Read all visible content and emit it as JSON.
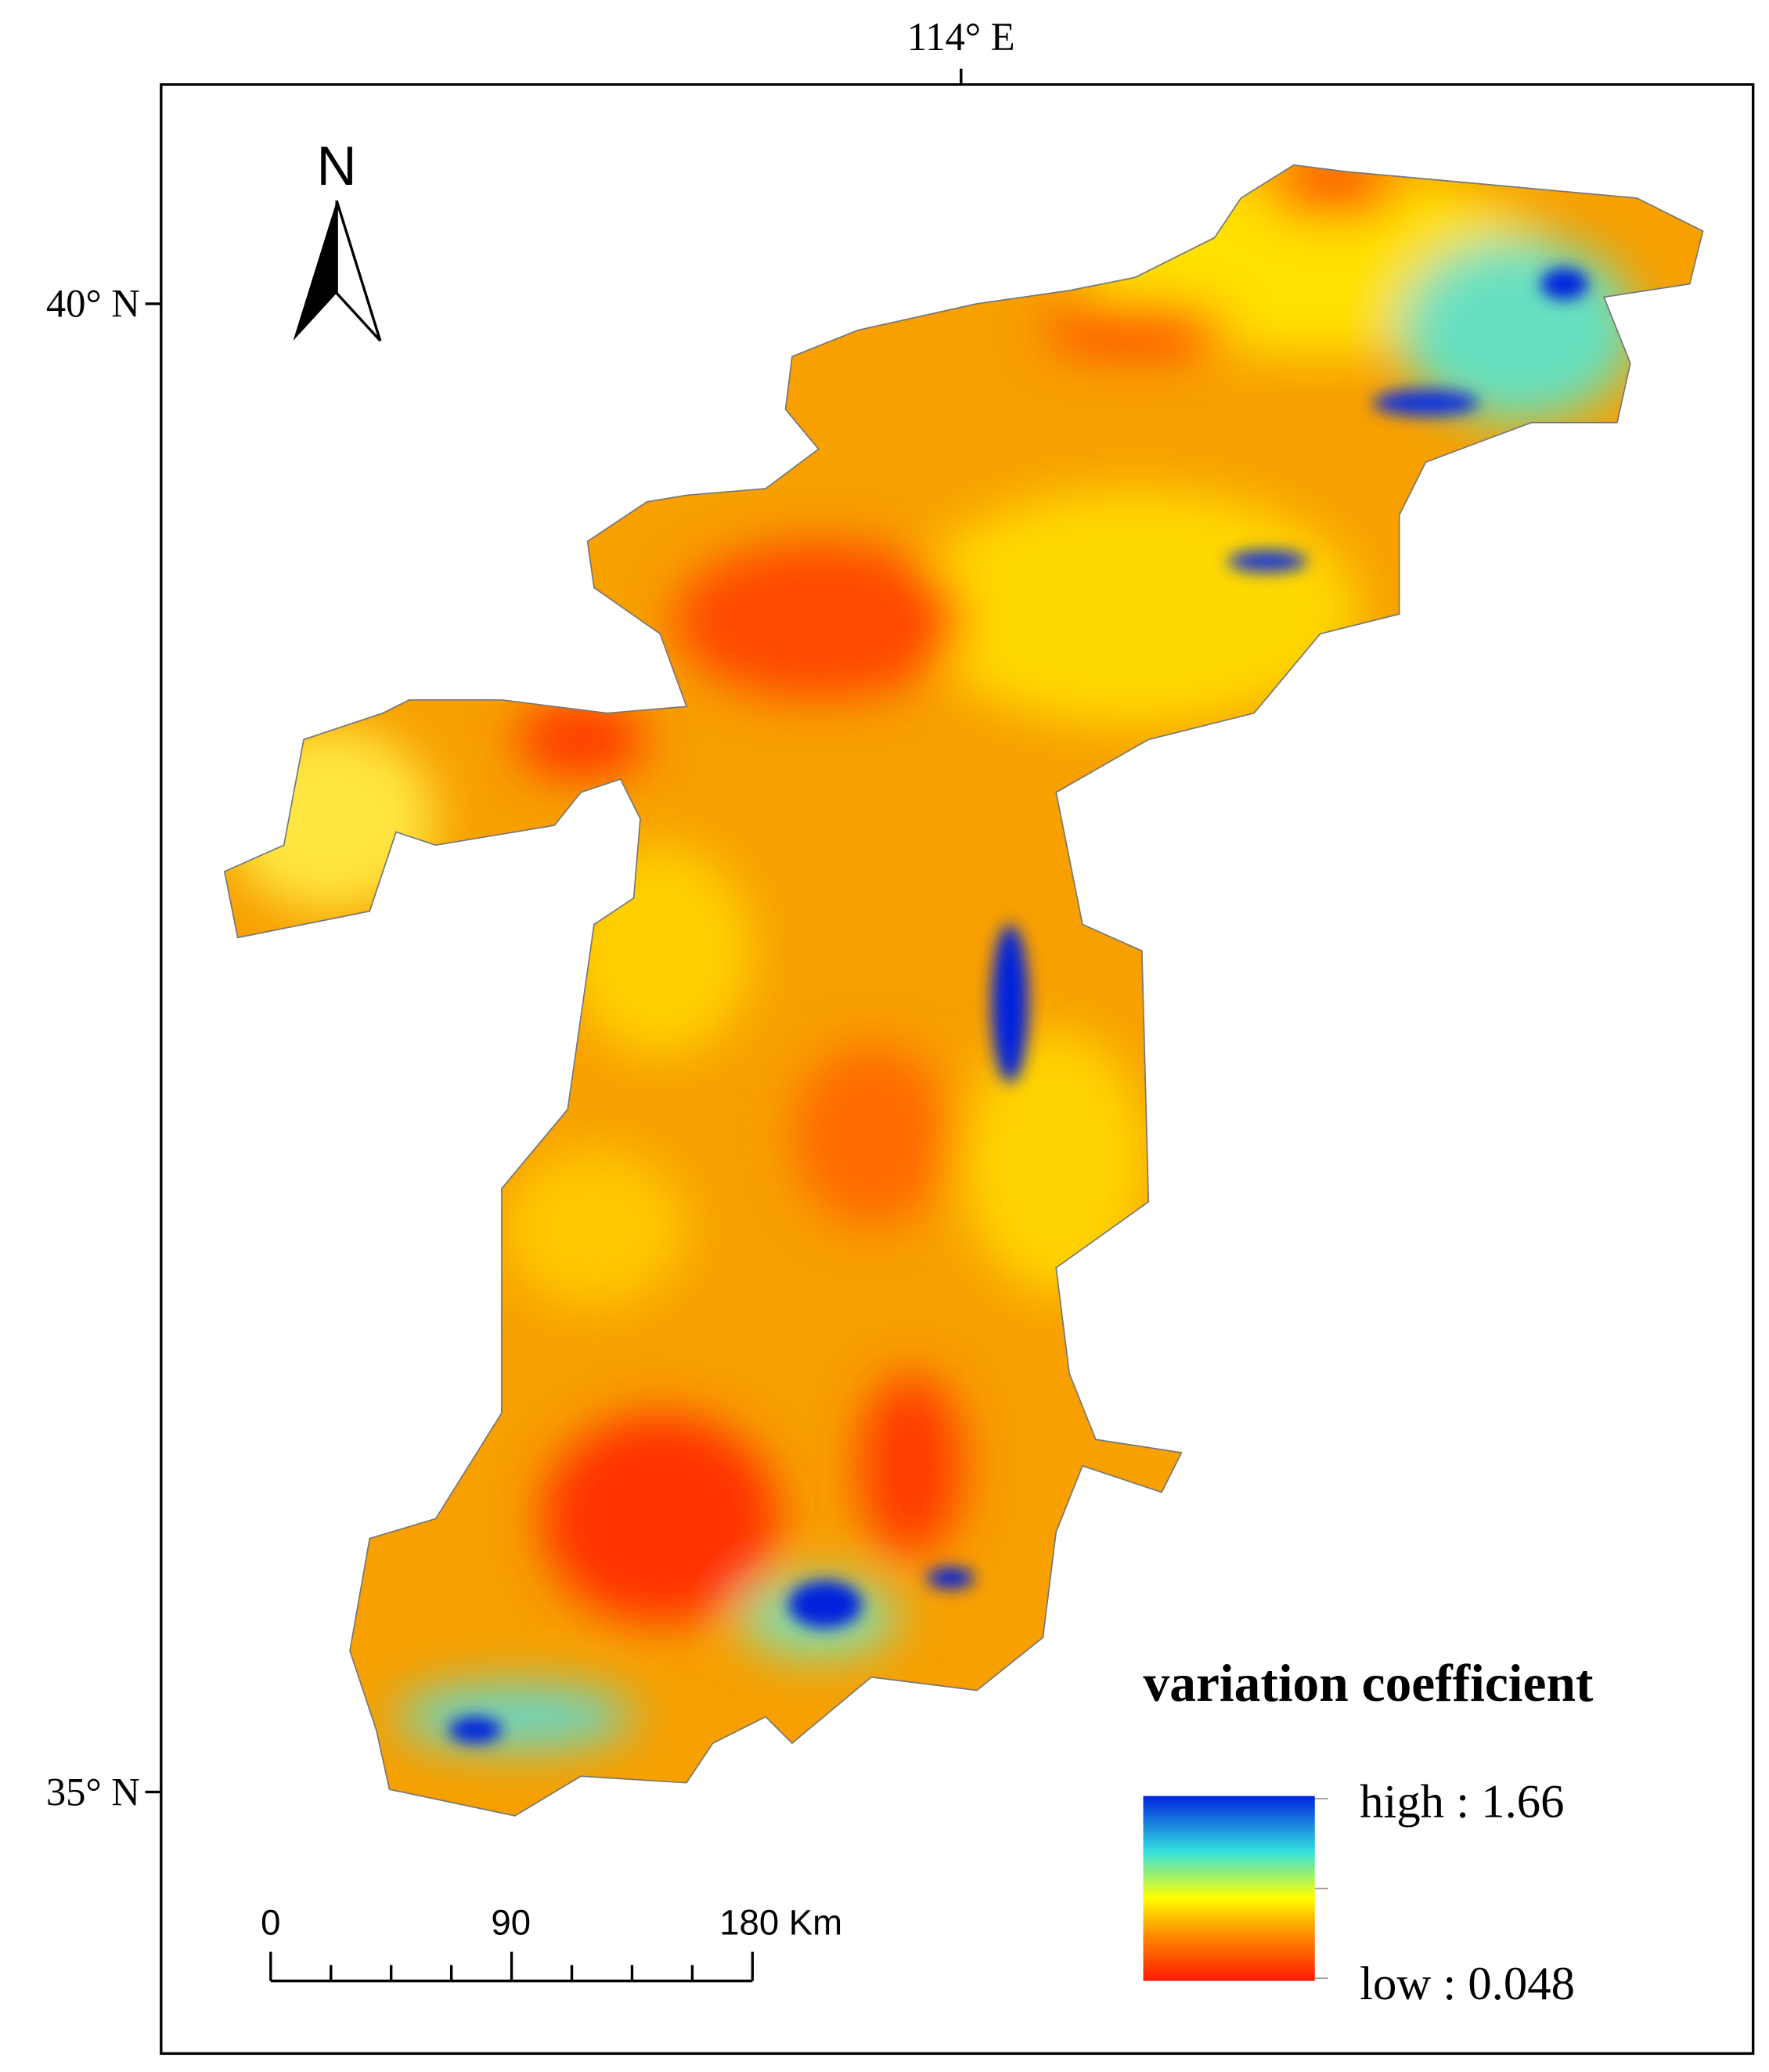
{
  "map": {
    "longitude_label": "114° E",
    "latitude_labels": [
      "40° N",
      "35° N"
    ],
    "north_label": "N",
    "legend": {
      "title": "variation coefficient",
      "high": "high : 1.66",
      "low": "low : 0.048"
    },
    "scale_bar": {
      "labels": [
        "0",
        "90",
        "180 Km"
      ]
    }
  }
}
